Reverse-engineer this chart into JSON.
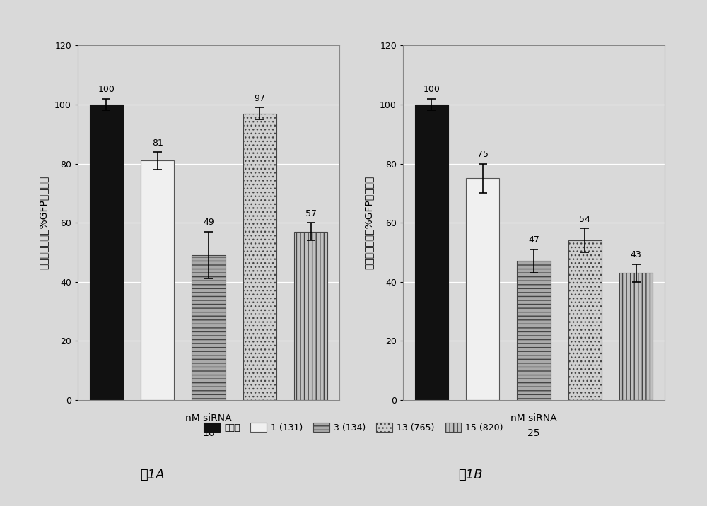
{
  "panel_A": {
    "conc_label": "10",
    "xlabel": "nM siRNA",
    "ylabel": "相对于非靶向的%GFP阳性细胞",
    "bars": [
      {
        "label": "非靶向",
        "value": 100,
        "error": 2,
        "hatch": null,
        "facecolor": "#111111",
        "edgecolor": "#111111"
      },
      {
        "label": "1 (131)",
        "value": 81,
        "error": 3,
        "hatch": null,
        "facecolor": "#f0f0f0",
        "edgecolor": "#555555"
      },
      {
        "label": "3 (134)",
        "value": 49,
        "error": 8,
        "hatch": "---",
        "facecolor": "#aaaaaa",
        "edgecolor": "#444444"
      },
      {
        "label": "13 (765)",
        "value": 97,
        "error": 2,
        "hatch": "...",
        "facecolor": "#d0d0d0",
        "edgecolor": "#444444"
      },
      {
        "label": "15 (820)",
        "value": 57,
        "error": 3,
        "hatch": "|||",
        "facecolor": "#c0c0c0",
        "edgecolor": "#444444"
      }
    ],
    "ylim": [
      0,
      120
    ],
    "yticks": [
      0,
      20,
      40,
      60,
      80,
      100,
      120
    ],
    "figure_label": "图1A"
  },
  "panel_B": {
    "conc_label": "25",
    "xlabel": "nM siRNA",
    "ylabel": "相对于非靶向的%GFP阳性细胞",
    "bars": [
      {
        "label": "非靶向",
        "value": 100,
        "error": 2,
        "hatch": null,
        "facecolor": "#111111",
        "edgecolor": "#111111"
      },
      {
        "label": "1 (131)",
        "value": 75,
        "error": 5,
        "hatch": null,
        "facecolor": "#f0f0f0",
        "edgecolor": "#555555"
      },
      {
        "label": "3 (134)",
        "value": 47,
        "error": 4,
        "hatch": "---",
        "facecolor": "#aaaaaa",
        "edgecolor": "#444444"
      },
      {
        "label": "13 (765)",
        "value": 54,
        "error": 4,
        "hatch": "...",
        "facecolor": "#d0d0d0",
        "edgecolor": "#444444"
      },
      {
        "label": "15 (820)",
        "value": 43,
        "error": 3,
        "hatch": "|||",
        "facecolor": "#c0c0c0",
        "edgecolor": "#444444"
      }
    ],
    "ylim": [
      0,
      120
    ],
    "yticks": [
      0,
      20,
      40,
      60,
      80,
      100,
      120
    ],
    "figure_label": "图1B"
  },
  "legend": {
    "labels": [
      "非靶向",
      "1 (131)",
      "3 (134)",
      "13 (765)",
      "15 (820)"
    ],
    "hatches": [
      null,
      null,
      "---",
      "...",
      "|||"
    ],
    "facecolors": [
      "#111111",
      "#f0f0f0",
      "#aaaaaa",
      "#d0d0d0",
      "#c0c0c0"
    ],
    "edgecolors": [
      "#111111",
      "#555555",
      "#444444",
      "#444444",
      "#444444"
    ]
  },
  "background_color": "#d9d9d9",
  "plot_bg_color": "#d9d9d9",
  "grid_color": "#ffffff",
  "bar_width": 0.65,
  "annotation_fontsize": 9,
  "tick_fontsize": 9,
  "xlabel_fontsize": 10,
  "ylabel_fontsize": 10,
  "legend_fontsize": 9,
  "figlabel_fontsize": 13
}
